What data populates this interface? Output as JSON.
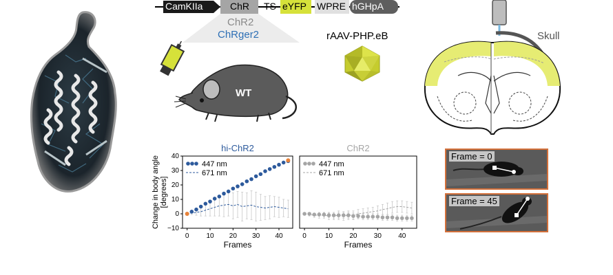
{
  "construct": {
    "promoter": "CamKIIa",
    "opsin": "ChR",
    "ts": "TS",
    "reporter": "eYFP",
    "wpre": "WPRE",
    "polya": "hGHpA"
  },
  "variant_labels": {
    "wt_opsin": "ChR2",
    "variant": "ChRger2"
  },
  "virus_label": "rAAV-PHP.eB",
  "mouse_label": "WT",
  "skull_label": "Skull",
  "colors": {
    "hi_chr2": "#2d5a9c",
    "chr2": "#a5a5a5",
    "eyfp": "#d6e13a",
    "frame_border": "#d4703a",
    "endpoint": "#e8833a"
  },
  "chart_data": [
    {
      "type": "line",
      "title": "hi-ChR2",
      "xlabel": "Frames",
      "ylabel": "Change in body angle [degrees]",
      "xlim": [
        -2,
        46
      ],
      "ylim": [
        -10,
        40
      ],
      "xticks": [
        0,
        10,
        20,
        30,
        40
      ],
      "yticks": [
        -10,
        0,
        10,
        20,
        30,
        40
      ],
      "xtick_labels": [
        "0",
        "10",
        "20",
        "30",
        "40"
      ],
      "ytick_labels": [
        "−10",
        "0",
        "10",
        "20",
        "30",
        "40"
      ],
      "legend": [
        "447 nm",
        "671 nm"
      ],
      "legend_position": "top-left",
      "series": [
        {
          "name": "447 nm",
          "style": "markers",
          "x": [
            0,
            2,
            4,
            6,
            8,
            10,
            12,
            14,
            16,
            18,
            20,
            22,
            24,
            26,
            28,
            30,
            32,
            34,
            36,
            38,
            40,
            42,
            44
          ],
          "y": [
            0,
            1.5,
            3,
            5,
            7,
            8.5,
            10.5,
            12,
            14,
            15.5,
            17.5,
            19,
            20.5,
            22.5,
            24,
            26,
            27.5,
            29.5,
            31,
            32.5,
            34,
            35.5,
            36.5
          ]
        },
        {
          "name": "671 nm",
          "style": "dashed",
          "x": [
            0,
            2,
            4,
            6,
            8,
            10,
            12,
            14,
            16,
            18,
            20,
            22,
            24,
            26,
            28,
            30,
            32,
            34,
            36,
            38,
            40,
            42,
            44
          ],
          "y": [
            0,
            0.5,
            1,
            1.5,
            2.5,
            3.5,
            4.5,
            5.5,
            6,
            6.5,
            5.5,
            6.5,
            5,
            5.5,
            6,
            5,
            4.5,
            4,
            4.5,
            5,
            4.5,
            4,
            3.5
          ],
          "err": [
            0.5,
            1,
            2,
            3,
            4,
            5,
            6,
            7,
            8,
            8,
            9,
            9,
            10,
            9,
            10,
            10,
            9,
            8,
            8,
            7,
            7,
            6,
            6
          ]
        }
      ],
      "start_point": [
        0,
        0
      ],
      "end_point": [
        44,
        37
      ]
    },
    {
      "type": "line",
      "title": "ChR2",
      "xlabel": "Frames",
      "xlim": [
        -2,
        46
      ],
      "ylim": [
        -10,
        40
      ],
      "xticks": [
        0,
        10,
        20,
        30,
        40
      ],
      "xtick_labels": [
        "0",
        "10",
        "20",
        "30",
        "40"
      ],
      "legend": [
        "447 nm",
        "671 nm"
      ],
      "legend_position": "top-left",
      "series": [
        {
          "name": "447 nm",
          "style": "markers",
          "x": [
            0,
            2,
            4,
            6,
            8,
            10,
            12,
            14,
            16,
            18,
            20,
            22,
            24,
            26,
            28,
            30,
            32,
            34,
            36,
            38,
            40,
            42,
            44
          ],
          "y": [
            0,
            0,
            -0.5,
            -0.5,
            -0.5,
            -1,
            -1,
            -1,
            -1,
            -1,
            -1.5,
            -1.5,
            -2,
            -2,
            -2,
            -2,
            -2.5,
            -2.5,
            -2.5,
            -3,
            -3,
            -3,
            -3
          ],
          "err": [
            0.3,
            0.5,
            1,
            1,
            1.5,
            1.5,
            2,
            2,
            2,
            2,
            2,
            2,
            2,
            2,
            2,
            2,
            2,
            2,
            2,
            2,
            2,
            2,
            2
          ]
        },
        {
          "name": "671 nm",
          "style": "dashed",
          "x": [
            0,
            2,
            4,
            6,
            8,
            10,
            12,
            14,
            16,
            18,
            20,
            22,
            24,
            26,
            28,
            30,
            32,
            34,
            36,
            38,
            40,
            42,
            44
          ],
          "y": [
            0,
            -0.5,
            -1,
            -1,
            -1,
            -1.5,
            -1.5,
            -1,
            -1.5,
            -1,
            -1,
            0,
            0.5,
            1,
            1.5,
            2,
            3,
            3.5,
            4.5,
            5,
            5,
            4.5,
            4
          ],
          "err": [
            0.5,
            1,
            1.5,
            2,
            2,
            2.5,
            2.5,
            3,
            3,
            3,
            3,
            3,
            3,
            3,
            3,
            3.5,
            3.5,
            4,
            4,
            4,
            4,
            4,
            4
          ]
        }
      ]
    }
  ],
  "frames": [
    {
      "label": "Frame = 0"
    },
    {
      "label": "Frame = 45"
    }
  ]
}
